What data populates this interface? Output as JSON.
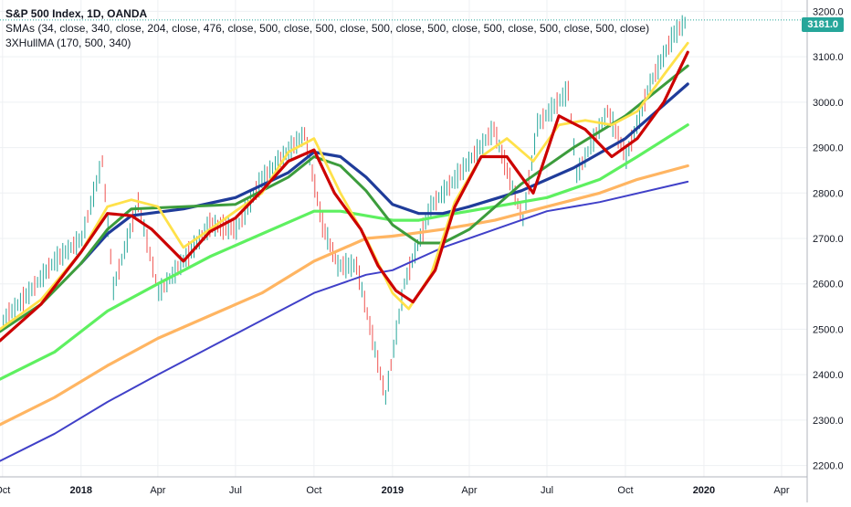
{
  "header": {
    "title": "S&P 500 Index, 1D, OANDA",
    "smas_label": "SMAs (34, close, 340, close, 204, close, 476, close, 500, close, 500, close, 500, close, 500, close, 500, close, 500, close, 500, close)",
    "hull_label": "3XHullMA (170, 500, 340)"
  },
  "last_price_label": "3181.0",
  "colors": {
    "up": "#26a69a",
    "down": "#ef5350",
    "price_line": "#26a69a",
    "axis_text": "#131722",
    "grid": "#eef0f3"
  },
  "chart_data": {
    "type": "line",
    "title": "S&P 500 Index, 1D, OANDA",
    "x_axis": {
      "type": "date",
      "ticks": [
        "Oct",
        "2018",
        "Apr",
        "Jul",
        "Oct",
        "2019",
        "Apr",
        "Jul",
        "Oct",
        "2020",
        "Apr"
      ],
      "range": [
        "2017-09-28",
        "2020-05-01"
      ]
    },
    "y_axis": {
      "ticks": [
        2200,
        2300,
        2400,
        2500,
        2600,
        2700,
        2800,
        2900,
        3000,
        3100,
        3200
      ],
      "ylim": [
        2175,
        3225
      ],
      "position": "right"
    },
    "grid": true,
    "last_price": 3181.0,
    "price": {
      "style": "candlestick-approx",
      "x": [
        "2017-10-02",
        "2017-11-01",
        "2017-12-01",
        "2018-01-02",
        "2018-01-26",
        "2018-02-08",
        "2018-03-09",
        "2018-04-02",
        "2018-05-01",
        "2018-06-01",
        "2018-07-02",
        "2018-08-01",
        "2018-09-20",
        "2018-10-11",
        "2018-10-29",
        "2018-11-20",
        "2018-12-24",
        "2019-01-15",
        "2019-02-15",
        "2019-03-15",
        "2019-04-30",
        "2019-06-03",
        "2019-06-20",
        "2019-07-26",
        "2019-08-05",
        "2019-09-10",
        "2019-10-02",
        "2019-10-30",
        "2019-11-27",
        "2019-12-13"
      ],
      "values": [
        2520,
        2580,
        2650,
        2700,
        2870,
        2590,
        2780,
        2580,
        2650,
        2730,
        2720,
        2830,
        2930,
        2730,
        2640,
        2640,
        2350,
        2600,
        2770,
        2830,
        2940,
        2740,
        2950,
        3025,
        2840,
        2980,
        2880,
        3040,
        3150,
        3181
      ]
    },
    "series": [
      {
        "name": "3XHullMA (170, 500, 340)",
        "color": "#cc0000",
        "width": 3.2,
        "x": [
          "2017-09-28",
          "2017-11-15",
          "2018-01-01",
          "2018-02-01",
          "2018-03-01",
          "2018-03-25",
          "2018-05-01",
          "2018-06-01",
          "2018-07-01",
          "2018-08-01",
          "2018-09-01",
          "2018-10-01",
          "2018-10-25",
          "2018-11-25",
          "2018-12-15",
          "2019-01-05",
          "2019-01-25",
          "2019-02-20",
          "2019-03-15",
          "2019-04-15",
          "2019-05-15",
          "2019-06-15",
          "2019-07-15",
          "2019-08-15",
          "2019-09-15",
          "2019-10-15",
          "2019-11-15",
          "2019-12-13"
        ],
        "values": [
          2475,
          2555,
          2670,
          2755,
          2750,
          2720,
          2650,
          2715,
          2745,
          2805,
          2870,
          2895,
          2800,
          2720,
          2640,
          2585,
          2560,
          2630,
          2770,
          2880,
          2880,
          2800,
          2970,
          2940,
          2880,
          2920,
          3000,
          3110
        ]
      },
      {
        "name": "SMA 34",
        "color": "#ffe14a",
        "width": 2.8,
        "x": [
          "2017-09-28",
          "2017-11-15",
          "2018-01-01",
          "2018-02-01",
          "2018-03-01",
          "2018-04-01",
          "2018-05-01",
          "2018-06-01",
          "2018-07-01",
          "2018-08-01",
          "2018-09-01",
          "2018-10-01",
          "2018-11-01",
          "2018-12-01",
          "2019-01-01",
          "2019-01-20",
          "2019-02-15",
          "2019-03-15",
          "2019-04-15",
          "2019-05-15",
          "2019-06-15",
          "2019-07-15",
          "2019-08-15",
          "2019-09-15",
          "2019-10-15",
          "2019-11-15",
          "2019-12-13"
        ],
        "values": [
          2500,
          2565,
          2670,
          2770,
          2785,
          2770,
          2680,
          2720,
          2760,
          2800,
          2890,
          2920,
          2800,
          2700,
          2580,
          2545,
          2620,
          2780,
          2880,
          2920,
          2870,
          2950,
          2960,
          2950,
          2980,
          3060,
          3130
        ]
      },
      {
        "name": "SMA 340",
        "color": "#3c9c3c",
        "width": 3,
        "x": [
          "2017-09-28",
          "2017-11-15",
          "2018-01-01",
          "2018-02-01",
          "2018-03-01",
          "2018-05-01",
          "2018-07-01",
          "2018-09-01",
          "2018-10-01",
          "2018-11-01",
          "2018-12-01",
          "2019-01-01",
          "2019-02-01",
          "2019-03-01",
          "2019-04-01",
          "2019-06-01",
          "2019-08-01",
          "2019-10-01",
          "2019-12-13"
        ],
        "values": [
          2495,
          2555,
          2645,
          2720,
          2765,
          2770,
          2775,
          2835,
          2880,
          2860,
          2805,
          2730,
          2690,
          2690,
          2720,
          2820,
          2900,
          2970,
          3080
        ]
      },
      {
        "name": "SMA 204",
        "color": "#1f3c9a",
        "width": 3.2,
        "x": [
          "2018-01-01",
          "2018-02-01",
          "2018-03-01",
          "2018-05-01",
          "2018-07-01",
          "2018-09-01",
          "2018-10-01",
          "2018-11-01",
          "2018-12-01",
          "2019-01-01",
          "2019-02-01",
          "2019-03-01",
          "2019-04-01",
          "2019-06-01",
          "2019-08-01",
          "2019-10-01",
          "2019-12-13"
        ],
        "values": [
          2645,
          2710,
          2750,
          2765,
          2790,
          2845,
          2890,
          2880,
          2835,
          2775,
          2755,
          2755,
          2770,
          2805,
          2855,
          2920,
          3040
        ]
      },
      {
        "name": "SMA 476",
        "color": "#5ef060",
        "width": 3.2,
        "x": [
          "2017-09-28",
          "2017-12-01",
          "2018-02-01",
          "2018-04-01",
          "2018-06-01",
          "2018-08-01",
          "2018-10-01",
          "2018-11-01",
          "2018-12-01",
          "2019-01-01",
          "2019-02-01",
          "2019-03-01",
          "2019-05-01",
          "2019-07-01",
          "2019-09-01",
          "2019-10-15",
          "2019-12-13"
        ],
        "values": [
          2390,
          2450,
          2540,
          2600,
          2660,
          2710,
          2760,
          2760,
          2750,
          2740,
          2740,
          2750,
          2770,
          2790,
          2830,
          2880,
          2950
        ]
      },
      {
        "name": "SMA 500",
        "color": "#ffb562",
        "width": 3.2,
        "x": [
          "2017-09-28",
          "2017-12-01",
          "2018-02-01",
          "2018-04-01",
          "2018-06-01",
          "2018-08-01",
          "2018-10-01",
          "2018-12-01",
          "2019-01-01",
          "2019-03-01",
          "2019-05-01",
          "2019-07-01",
          "2019-09-01",
          "2019-10-15",
          "2019-12-13"
        ],
        "values": [
          2290,
          2350,
          2420,
          2480,
          2530,
          2580,
          2650,
          2700,
          2705,
          2720,
          2740,
          2770,
          2800,
          2830,
          2860
        ]
      },
      {
        "name": "SMA 500 (2)",
        "color": "#4040c8",
        "width": 2,
        "x": [
          "2017-09-28",
          "2017-12-01",
          "2018-02-01",
          "2018-04-01",
          "2018-06-01",
          "2018-08-01",
          "2018-10-01",
          "2018-12-01",
          "2019-01-01",
          "2019-03-01",
          "2019-05-01",
          "2019-07-01",
          "2019-09-01",
          "2019-12-13"
        ],
        "values": [
          2210,
          2270,
          2340,
          2400,
          2460,
          2520,
          2580,
          2620,
          2630,
          2680,
          2720,
          2760,
          2780,
          2825
        ]
      }
    ]
  }
}
